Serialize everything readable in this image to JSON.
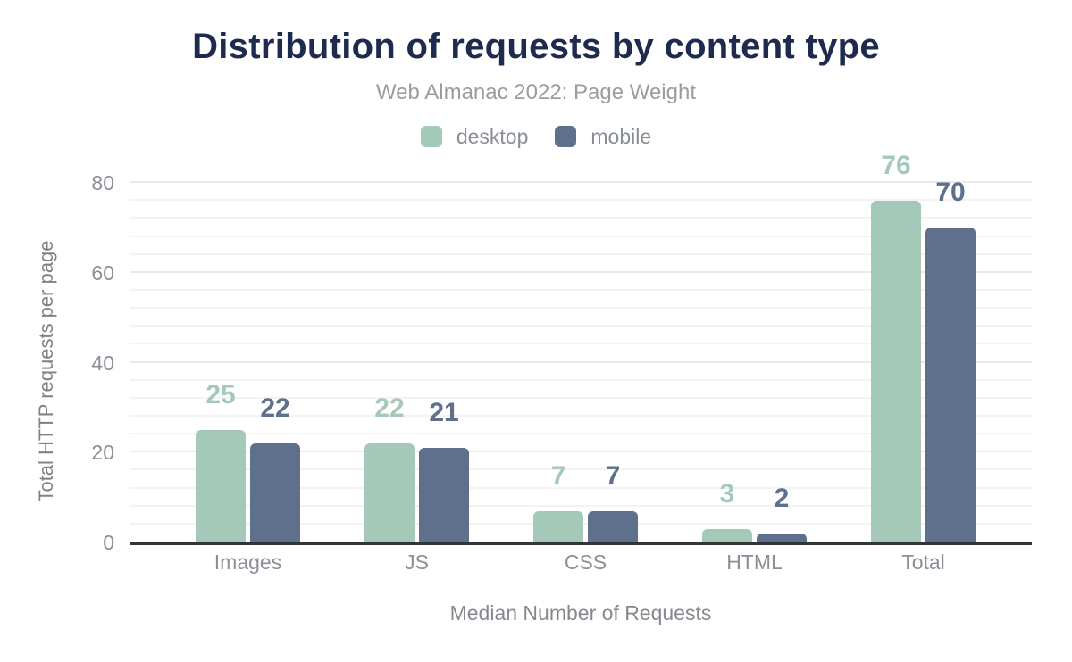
{
  "chart_data": {
    "type": "bar",
    "title": "Distribution of requests by content type",
    "subtitle": "Web Almanac 2022: Page Weight",
    "categories": [
      "Images",
      "JS",
      "CSS",
      "HTML",
      "Total"
    ],
    "series": [
      {
        "name": "desktop",
        "color": "#a5c9b8",
        "values": [
          25,
          22,
          7,
          3,
          76
        ]
      },
      {
        "name": "mobile",
        "color": "#5f708c",
        "values": [
          22,
          21,
          7,
          2,
          70
        ]
      }
    ],
    "xlabel": "Median Number of Requests",
    "ylabel": "Total HTTP requests per page",
    "ylim": [
      0,
      83
    ],
    "yticks": [
      0,
      20,
      40,
      60,
      80
    ],
    "minor_grid_step": 4,
    "grid": true,
    "legend_position": "top",
    "bar_value_labels": true
  },
  "colors": {
    "title": "#1e2b4e",
    "subtitle": "#9a9ca0",
    "legend_text": "#898e94",
    "tick_text": "#8b9096",
    "axis_title_text": "#7d8288",
    "grid_minor": "#f3f3f4",
    "grid_major": "#e9eaeb",
    "axis_line": "#30353b",
    "desktop": "#a5c9b8",
    "mobile": "#5f708c"
  }
}
